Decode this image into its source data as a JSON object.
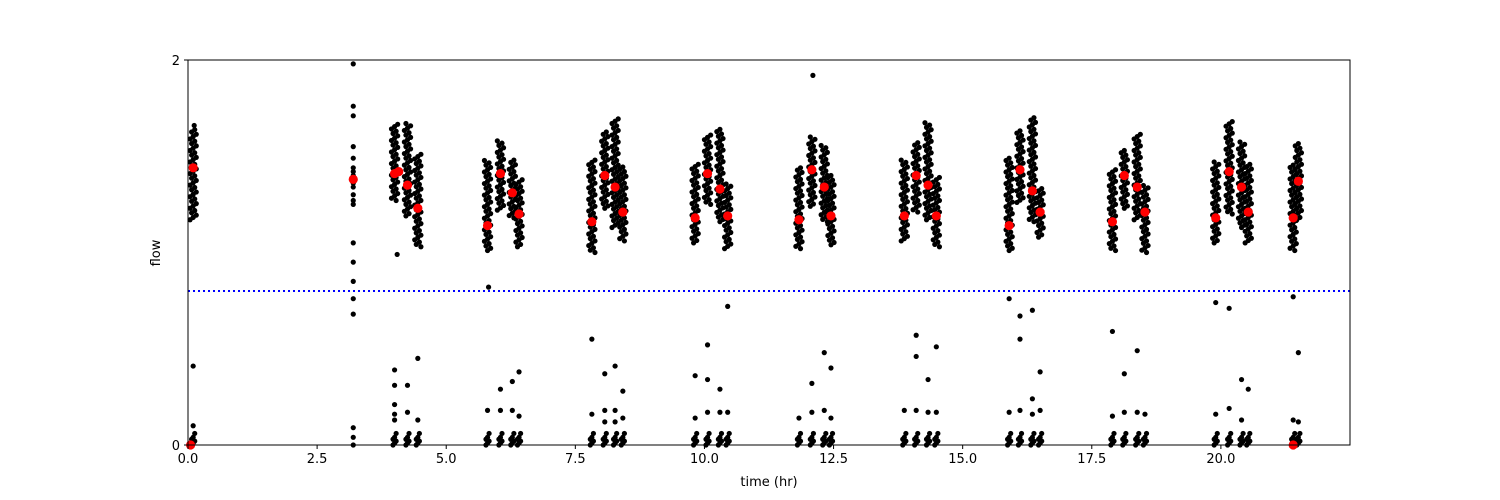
{
  "chart_data": {
    "type": "scatter",
    "title": "",
    "xlabel": "time (hr)",
    "ylabel": "flow",
    "xlim": [
      0,
      22.5
    ],
    "ylim": [
      0,
      2
    ],
    "xticks": [
      "0.0",
      "2.5",
      "5.0",
      "7.5",
      "10.0",
      "12.5",
      "15.0",
      "17.5",
      "20.0"
    ],
    "xtick_values": [
      0,
      2.5,
      5,
      7.5,
      10,
      12.5,
      15,
      17.5,
      20
    ],
    "yticks": [
      "0",
      "2"
    ],
    "ytick_values": [
      0,
      2
    ],
    "grid": false,
    "threshold": {
      "value": 0.8,
      "color": "#0000ff",
      "style": "dotted"
    },
    "colors": {
      "points": "#000000",
      "means": "#ff0000"
    },
    "base_low_values": [
      0,
      0.01,
      0.02,
      0.03,
      0.04,
      0.06
    ],
    "streaks": [
      {
        "x": 0.1,
        "ymin": 1.17,
        "ymax": 1.64,
        "mean": 1.44,
        "low": [
          0.1,
          0.41
        ]
      },
      {
        "x": 4.0,
        "ymin": 1.27,
        "ymax": 1.67,
        "mean": 1.41,
        "low": [
          0.39,
          0.31,
          0.21,
          0.16,
          0.13
        ]
      },
      {
        "x": 4.25,
        "ymin": 1.19,
        "ymax": 1.67,
        "mean": 1.35,
        "low": [
          0.31,
          0.17
        ]
      },
      {
        "x": 4.45,
        "ymin": 1.03,
        "ymax": 1.52,
        "mean": 1.23,
        "low": [
          0.45,
          0.13
        ]
      },
      {
        "x": 5.8,
        "ymin": 1.01,
        "ymax": 1.48,
        "mean": 1.14,
        "low": [
          0.18
        ]
      },
      {
        "x": 6.05,
        "ymin": 1.22,
        "ymax": 1.59,
        "mean": 1.41,
        "low": [
          0.29,
          0.18
        ]
      },
      {
        "x": 6.28,
        "ymin": 1.18,
        "ymax": 1.48,
        "mean": 1.31,
        "low": [
          0.33,
          0.18
        ]
      },
      {
        "x": 6.41,
        "ymin": 1.03,
        "ymax": 1.38,
        "mean": 1.2,
        "low": [
          0.38,
          0.15
        ]
      },
      {
        "x": 7.82,
        "ymin": 1.0,
        "ymax": 1.49,
        "mean": 1.16,
        "low": [
          0.55,
          0.16
        ]
      },
      {
        "x": 8.07,
        "ymin": 1.23,
        "ymax": 1.63,
        "mean": 1.4,
        "low": [
          0.37,
          0.18,
          0.12
        ]
      },
      {
        "x": 8.27,
        "ymin": 1.13,
        "ymax": 1.7,
        "mean": 1.34,
        "low": [
          0.41,
          0.18,
          0.12
        ]
      },
      {
        "x": 8.42,
        "ymin": 1.06,
        "ymax": 1.45,
        "mean": 1.21,
        "low": [
          0.28,
          0.14
        ]
      },
      {
        "x": 9.82,
        "ymin": 1.05,
        "ymax": 1.46,
        "mean": 1.18,
        "low": [
          0.36,
          0.14
        ]
      },
      {
        "x": 10.06,
        "ymin": 1.25,
        "ymax": 1.61,
        "mean": 1.41,
        "low": [
          0.52,
          0.34,
          0.17
        ]
      },
      {
        "x": 10.3,
        "ymin": 1.16,
        "ymax": 1.64,
        "mean": 1.33,
        "low": [
          0.29,
          0.17
        ]
      },
      {
        "x": 10.45,
        "ymin": 1.02,
        "ymax": 1.36,
        "mean": 1.19,
        "low": [
          0.72,
          0.17
        ]
      },
      {
        "x": 11.83,
        "ymin": 1.02,
        "ymax": 1.45,
        "mean": 1.17,
        "low": [
          0.14
        ]
      },
      {
        "x": 12.08,
        "ymin": 1.24,
        "ymax": 1.61,
        "mean": 1.43,
        "low": [
          0.32,
          0.17
        ]
      },
      {
        "x": 12.32,
        "ymin": 1.16,
        "ymax": 1.56,
        "mean": 1.34,
        "low": [
          0.48,
          0.18
        ]
      },
      {
        "x": 12.45,
        "ymin": 1.04,
        "ymax": 1.41,
        "mean": 1.19,
        "low": [
          0.4,
          0.14
        ]
      },
      {
        "x": 13.87,
        "ymin": 1.06,
        "ymax": 1.49,
        "mean": 1.19,
        "low": [
          0.18
        ]
      },
      {
        "x": 14.1,
        "ymin": 1.21,
        "ymax": 1.57,
        "mean": 1.4,
        "low": [
          0.57,
          0.46,
          0.18
        ]
      },
      {
        "x": 14.33,
        "ymin": 1.17,
        "ymax": 1.68,
        "mean": 1.35,
        "low": [
          0.34,
          0.17
        ]
      },
      {
        "x": 14.49,
        "ymin": 1.03,
        "ymax": 1.39,
        "mean": 1.19,
        "low": [
          0.51,
          0.17
        ]
      },
      {
        "x": 15.9,
        "ymin": 1.01,
        "ymax": 1.49,
        "mean": 1.14,
        "low": [
          0.76,
          0.17
        ]
      },
      {
        "x": 16.11,
        "ymin": 1.26,
        "ymax": 1.64,
        "mean": 1.43,
        "low": [
          0.67,
          0.55,
          0.18
        ]
      },
      {
        "x": 16.35,
        "ymin": 1.16,
        "ymax": 1.71,
        "mean": 1.32,
        "low": [
          0.7,
          0.24,
          0.16
        ]
      },
      {
        "x": 16.5,
        "ymin": 1.08,
        "ymax": 1.34,
        "mean": 1.21,
        "low": [
          0.38,
          0.18
        ]
      },
      {
        "x": 17.9,
        "ymin": 1.01,
        "ymax": 1.44,
        "mean": 1.16,
        "low": [
          0.59,
          0.15
        ]
      },
      {
        "x": 18.13,
        "ymin": 1.23,
        "ymax": 1.54,
        "mean": 1.4,
        "low": [
          0.37,
          0.17
        ]
      },
      {
        "x": 18.38,
        "ymin": 1.17,
        "ymax": 1.62,
        "mean": 1.34,
        "low": [
          0.49,
          0.17
        ]
      },
      {
        "x": 18.53,
        "ymin": 1.0,
        "ymax": 1.35,
        "mean": 1.21,
        "low": [
          0.16
        ]
      },
      {
        "x": 19.9,
        "ymin": 1.05,
        "ymax": 1.47,
        "mean": 1.18,
        "low": [
          0.74,
          0.16
        ]
      },
      {
        "x": 20.16,
        "ymin": 1.2,
        "ymax": 1.68,
        "mean": 1.42,
        "low": [
          0.71,
          0.19
        ]
      },
      {
        "x": 20.4,
        "ymin": 1.13,
        "ymax": 1.58,
        "mean": 1.34,
        "low": [
          0.34,
          0.13
        ]
      },
      {
        "x": 20.53,
        "ymin": 1.05,
        "ymax": 1.46,
        "mean": 1.21,
        "low": [
          0.29
        ]
      },
      {
        "x": 21.4,
        "ymin": 1.01,
        "ymax": 1.46,
        "mean": 1.18,
        "low": [
          0.77,
          0.13
        ]
      },
      {
        "x": 21.5,
        "ymin": 1.17,
        "ymax": 1.57,
        "mean": 1.37,
        "low": [
          0.48,
          0.12
        ]
      }
    ],
    "points": [
      {
        "x": 3.2,
        "y": 1.98
      },
      {
        "x": 3.2,
        "y": 1.76
      },
      {
        "x": 3.2,
        "y": 1.71
      },
      {
        "x": 3.2,
        "y": 1.55
      },
      {
        "x": 3.2,
        "y": 1.49
      },
      {
        "x": 3.2,
        "y": 1.44
      },
      {
        "x": 3.2,
        "y": 1.42
      },
      {
        "x": 3.2,
        "y": 1.4
      },
      {
        "x": 3.2,
        "y": 1.38
      },
      {
        "x": 3.2,
        "y": 1.36
      },
      {
        "x": 3.2,
        "y": 1.34
      },
      {
        "x": 3.2,
        "y": 1.3
      },
      {
        "x": 3.2,
        "y": 1.27
      },
      {
        "x": 3.2,
        "y": 1.25
      },
      {
        "x": 3.2,
        "y": 1.05
      },
      {
        "x": 3.2,
        "y": 0.95
      },
      {
        "x": 3.2,
        "y": 0.85
      },
      {
        "x": 3.2,
        "y": 0.76
      },
      {
        "x": 3.2,
        "y": 0.68
      },
      {
        "x": 3.2,
        "y": 0.09
      },
      {
        "x": 3.2,
        "y": 0.04
      },
      {
        "x": 3.2,
        "y": 0.0
      },
      {
        "x": 4.05,
        "y": 0.99
      },
      {
        "x": 5.82,
        "y": 0.82
      },
      {
        "x": 12.1,
        "y": 1.92
      },
      {
        "x": 0.12,
        "y": 1.66
      }
    ],
    "means": [
      {
        "x": 0.05,
        "y": 0.0
      },
      {
        "x": 3.2,
        "y": 1.38
      },
      {
        "x": 4.08,
        "y": 1.42
      },
      {
        "x": 21.4,
        "y": 0.0
      }
    ]
  }
}
